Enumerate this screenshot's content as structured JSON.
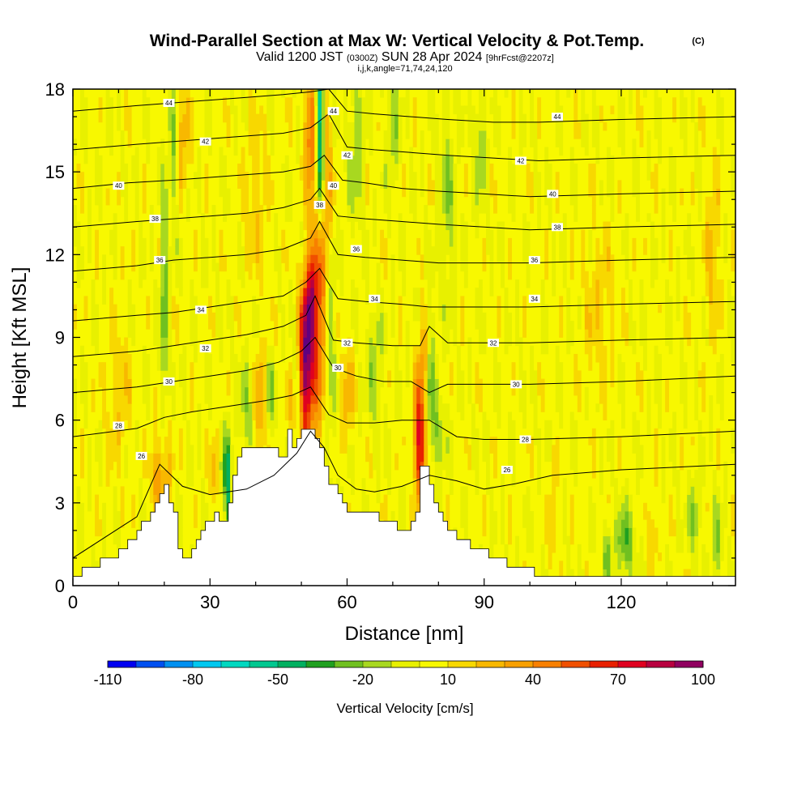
{
  "title": {
    "main": "Wind-Parallel Section at Max W: Vertical Velocity & Pot.Temp.",
    "main_mark": "(C)",
    "valid_prefix": "Valid 1200 JST",
    "valid_utc": "(0300Z)",
    "valid_date": "SUN 28 Apr 2024",
    "valid_fcst": "[9hrFcst@2207z]",
    "params": "i,j,k,angle=71,74,24,120"
  },
  "chart_data": {
    "type": "heatmap",
    "xlabel": "Distance [nm]",
    "ylabel": "Height [Kft MSL]",
    "xlim": [
      0,
      145
    ],
    "ylim": [
      0,
      18
    ],
    "x_ticks": [
      0,
      30,
      60,
      90,
      120
    ],
    "y_ticks": [
      0,
      3,
      6,
      9,
      12,
      15,
      18
    ],
    "colorbar": {
      "label": "Vertical Velocity [cm/s]",
      "tick_labels": [
        "-110",
        "-80",
        "-50",
        "-20",
        "10",
        "40",
        "70",
        "100"
      ],
      "tick_values": [
        -110,
        -80,
        -50,
        -20,
        10,
        40,
        70,
        100
      ],
      "bins": [
        -110,
        -100,
        -90,
        -80,
        -70,
        -60,
        -50,
        -40,
        -30,
        -20,
        -10,
        0,
        10,
        20,
        30,
        40,
        50,
        60,
        70,
        80,
        90,
        100
      ],
      "colors": [
        "#0000f0",
        "#0050f0",
        "#0090f0",
        "#00c8f0",
        "#00d8c0",
        "#00c890",
        "#00b060",
        "#20a020",
        "#70c020",
        "#a8d820",
        "#e8f000",
        "#f8f800",
        "#f8d800",
        "#f8b800",
        "#f8a000",
        "#f88000",
        "#f05000",
        "#e82000",
        "#e00020",
        "#b80040",
        "#900060",
        "#600080"
      ]
    },
    "terrain_profile": {
      "distance_nm": [
        0,
        3,
        8,
        12,
        15,
        18,
        20,
        22,
        23,
        25,
        27,
        29,
        31,
        33,
        35,
        36,
        38,
        40,
        42,
        44,
        45,
        46,
        47,
        48,
        50,
        52,
        54,
        56,
        58,
        60,
        62,
        64,
        66,
        68,
        70,
        72,
        74,
        75,
        76,
        77,
        78,
        79,
        80,
        82,
        84,
        86,
        88,
        90,
        92,
        95,
        98,
        105,
        115,
        125,
        135,
        145
      ],
      "height_kft": [
        0.3,
        0.6,
        1.0,
        1.6,
        2.2,
        3.0,
        3.8,
        2.5,
        1.2,
        1.0,
        1.6,
        2.3,
        2.5,
        2.2,
        4.0,
        4.8,
        5.0,
        5.0,
        5.0,
        5.0,
        4.5,
        4.8,
        5.5,
        5.0,
        5.8,
        5.8,
        5.0,
        3.8,
        3.2,
        2.8,
        2.6,
        2.6,
        2.5,
        2.4,
        2.2,
        1.9,
        2.2,
        2.8,
        4.2,
        4.3,
        3.8,
        3.0,
        2.5,
        2.0,
        1.7,
        1.5,
        1.3,
        1.2,
        1.1,
        0.8,
        0.6,
        0.3,
        0.3,
        0.3,
        0.3,
        0.3
      ]
    },
    "vertical_velocity_features": [
      {
        "x": 51,
        "y": 8.0,
        "sx": 1.2,
        "sy": 1.9,
        "value": 100
      },
      {
        "x": 52,
        "y": 10.5,
        "sx": 1.0,
        "sy": 1.2,
        "value": 45
      },
      {
        "x": 54,
        "y": 11.5,
        "sx": 1.2,
        "sy": 3.8,
        "value": 65
      },
      {
        "x": 56,
        "y": 14.5,
        "sx": 0.8,
        "sy": 2.0,
        "value": 30
      },
      {
        "x": 52,
        "y": 16.5,
        "sx": 1.0,
        "sy": 1.5,
        "value": 45
      },
      {
        "x": 54,
        "y": 16.0,
        "sx": 0.7,
        "sy": 2.8,
        "value": -90
      },
      {
        "x": 56,
        "y": 10.0,
        "sx": 1.0,
        "sy": 4.0,
        "value": -25
      },
      {
        "x": 49,
        "y": 7.0,
        "sx": 0.9,
        "sy": 1.5,
        "value": -30
      },
      {
        "x": 48,
        "y": 6.5,
        "sx": 1.2,
        "sy": 0.8,
        "value": 25
      },
      {
        "x": 76,
        "y": 5.3,
        "sx": 1.0,
        "sy": 1.6,
        "value": 75
      },
      {
        "x": 77,
        "y": 8.5,
        "sx": 0.9,
        "sy": 1.2,
        "value": 30
      },
      {
        "x": 78,
        "y": 7.5,
        "sx": 0.8,
        "sy": 2.0,
        "value": -35
      },
      {
        "x": 80,
        "y": 5.5,
        "sx": 1.2,
        "sy": 1.0,
        "value": -20
      },
      {
        "x": 20,
        "y": 10.0,
        "sx": 0.6,
        "sy": 3.5,
        "value": -30
      },
      {
        "x": 20,
        "y": 4.0,
        "sx": 1.0,
        "sy": 1.5,
        "value": 30
      },
      {
        "x": 18,
        "y": 3.8,
        "sx": 0.8,
        "sy": 1.0,
        "value": 25
      },
      {
        "x": 24,
        "y": 16.5,
        "sx": 1.2,
        "sy": 1.4,
        "value": 25
      },
      {
        "x": 22,
        "y": 16.0,
        "sx": 0.6,
        "sy": 2.0,
        "value": -25
      },
      {
        "x": 33,
        "y": 4.0,
        "sx": 0.8,
        "sy": 1.0,
        "value": -20
      },
      {
        "x": 34,
        "y": 3.5,
        "sx": 0.5,
        "sy": 1.5,
        "value": -40
      },
      {
        "x": 31,
        "y": 4.0,
        "sx": 0.6,
        "sy": 1.0,
        "value": 25
      },
      {
        "x": 41,
        "y": 6.5,
        "sx": 1.0,
        "sy": 1.4,
        "value": 30
      },
      {
        "x": 43,
        "y": 6.8,
        "sx": 0.8,
        "sy": 1.0,
        "value": -25
      },
      {
        "x": 38,
        "y": 6.5,
        "sx": 1.2,
        "sy": 1.2,
        "value": -20
      },
      {
        "x": 62,
        "y": 16.0,
        "sx": 1.2,
        "sy": 2.0,
        "value": -20
      },
      {
        "x": 66,
        "y": 8.0,
        "sx": 1.2,
        "sy": 1.5,
        "value": -20
      },
      {
        "x": 60,
        "y": 7.0,
        "sx": 1.0,
        "sy": 1.2,
        "value": 25
      },
      {
        "x": 70,
        "y": 16.5,
        "sx": 1.0,
        "sy": 1.6,
        "value": -20
      },
      {
        "x": 82,
        "y": 14.0,
        "sx": 1.2,
        "sy": 2.5,
        "value": -20
      },
      {
        "x": 89,
        "y": 16.0,
        "sx": 1.0,
        "sy": 1.6,
        "value": -20
      },
      {
        "x": 121,
        "y": 1.5,
        "sx": 1.5,
        "sy": 1.0,
        "value": -30
      },
      {
        "x": 117,
        "y": 1.2,
        "sx": 0.6,
        "sy": 0.8,
        "value": -30
      },
      {
        "x": 136,
        "y": 2.5,
        "sx": 0.9,
        "sy": 1.0,
        "value": -25
      },
      {
        "x": 141,
        "y": 1.5,
        "sx": 0.8,
        "sy": 1.2,
        "value": -20
      },
      {
        "x": 127,
        "y": 2.0,
        "sx": 0.8,
        "sy": 1.0,
        "value": 20
      },
      {
        "x": 105,
        "y": 2.5,
        "sx": 0.6,
        "sy": 1.2,
        "value": 20
      },
      {
        "x": 140,
        "y": 12.0,
        "sx": 1.2,
        "sy": 2.0,
        "value": 20
      },
      {
        "x": 40,
        "y": 14.0,
        "sx": 2.0,
        "sy": 2.0,
        "value": 15
      },
      {
        "x": 115,
        "y": 10.0,
        "sx": 2.5,
        "sy": 2.0,
        "value": 15
      },
      {
        "x": 10,
        "y": 7.0,
        "sx": 2.0,
        "sy": 2.0,
        "value": 15
      }
    ],
    "potential_temperature_contours": {
      "units": "C",
      "levels": [
        {
          "value": 26,
          "x": [
            0,
            14,
            19,
            24,
            30,
            38,
            44,
            49,
            52,
            55,
            58,
            62,
            66,
            72,
            78,
            84,
            90,
            97,
            105,
            120,
            145
          ],
          "y": [
            1.0,
            2.5,
            4.4,
            3.6,
            3.3,
            3.5,
            4.0,
            4.8,
            5.6,
            5.0,
            4.0,
            3.5,
            3.4,
            3.6,
            4.0,
            3.8,
            3.5,
            3.7,
            4.0,
            4.2,
            4.4
          ],
          "labels": [
            [
              15,
              4.7
            ],
            [
              95,
              4.2
            ]
          ]
        },
        {
          "value": 28,
          "x": [
            0,
            14,
            20,
            26,
            34,
            42,
            48,
            52,
            56,
            60,
            66,
            72,
            78,
            84,
            90,
            100,
            120,
            145
          ],
          "y": [
            5.4,
            5.7,
            6.1,
            6.3,
            6.5,
            6.7,
            6.9,
            7.2,
            6.2,
            5.9,
            5.9,
            6.0,
            6.0,
            5.4,
            5.3,
            5.3,
            5.4,
            5.6
          ],
          "labels": [
            [
              10,
              5.8
            ],
            [
              99,
              5.3
            ]
          ]
        },
        {
          "value": 30,
          "x": [
            0,
            14,
            22,
            30,
            38,
            45,
            50,
            53,
            57,
            62,
            68,
            74,
            78,
            82,
            90,
            100,
            120,
            145
          ],
          "y": [
            7.0,
            7.2,
            7.4,
            7.6,
            7.8,
            8.1,
            8.5,
            9.0,
            7.9,
            7.6,
            7.4,
            7.4,
            7.0,
            7.3,
            7.3,
            7.3,
            7.4,
            7.6
          ],
          "labels": [
            [
              21,
              7.4
            ],
            [
              58,
              7.9
            ],
            [
              97,
              7.3
            ]
          ]
        },
        {
          "value": 32,
          "x": [
            0,
            14,
            22,
            30,
            38,
            46,
            51,
            53,
            57,
            62,
            70,
            76,
            78,
            82,
            90,
            100,
            120,
            145
          ],
          "y": [
            8.3,
            8.5,
            8.7,
            8.9,
            9.1,
            9.4,
            9.8,
            10.5,
            8.9,
            8.8,
            8.7,
            8.7,
            9.4,
            8.8,
            8.8,
            8.8,
            8.9,
            9.0
          ],
          "labels": [
            [
              29,
              8.6
            ],
            [
              60,
              8.8
            ],
            [
              92,
              8.8
            ]
          ]
        },
        {
          "value": 34,
          "x": [
            0,
            14,
            22,
            30,
            38,
            46,
            51,
            54,
            58,
            64,
            72,
            78,
            84,
            92,
            100,
            120,
            145
          ],
          "y": [
            9.6,
            9.8,
            9.9,
            10.1,
            10.3,
            10.5,
            11.0,
            11.5,
            10.4,
            10.3,
            10.2,
            10.1,
            10.1,
            10.1,
            10.1,
            10.2,
            10.3
          ],
          "labels": [
            [
              28,
              10.0
            ],
            [
              66,
              10.4
            ],
            [
              101,
              10.4
            ]
          ]
        },
        {
          "value": 36,
          "x": [
            0,
            14,
            22,
            30,
            38,
            46,
            52,
            54,
            58,
            64,
            72,
            80,
            90,
            100,
            120,
            145
          ],
          "y": [
            11.4,
            11.6,
            11.8,
            11.9,
            12.0,
            12.2,
            12.6,
            13.2,
            12.0,
            11.9,
            11.8,
            11.7,
            11.7,
            11.7,
            11.8,
            11.9
          ],
          "labels": [
            [
              19,
              11.8
            ],
            [
              62,
              12.2
            ],
            [
              101,
              11.8
            ]
          ]
        },
        {
          "value": 38,
          "x": [
            0,
            14,
            22,
            30,
            38,
            46,
            52,
            54,
            58,
            64,
            72,
            80,
            90,
            100,
            120,
            145
          ],
          "y": [
            13.0,
            13.2,
            13.3,
            13.4,
            13.5,
            13.7,
            14.0,
            14.4,
            13.4,
            13.3,
            13.2,
            13.1,
            13.0,
            12.9,
            13.0,
            13.1
          ],
          "labels": [
            [
              18,
              13.3
            ],
            [
              54,
              13.8
            ],
            [
              106,
              13.0
            ]
          ]
        },
        {
          "value": 40,
          "x": [
            0,
            12,
            22,
            30,
            38,
            46,
            52,
            55,
            59,
            64,
            72,
            80,
            90,
            100,
            120,
            145
          ],
          "y": [
            14.4,
            14.6,
            14.7,
            14.8,
            14.9,
            15.0,
            15.2,
            15.6,
            14.7,
            14.6,
            14.4,
            14.3,
            14.2,
            14.1,
            14.2,
            14.3
          ],
          "labels": [
            [
              10,
              14.5
            ],
            [
              57,
              14.5
            ],
            [
              105,
              14.2
            ]
          ]
        },
        {
          "value": 42,
          "x": [
            0,
            14,
            22,
            30,
            38,
            46,
            52,
            56,
            60,
            66,
            74,
            82,
            92,
            102,
            120,
            145
          ],
          "y": [
            15.8,
            16.0,
            16.1,
            16.2,
            16.3,
            16.4,
            16.6,
            17.1,
            15.9,
            15.8,
            15.7,
            15.6,
            15.5,
            15.4,
            15.5,
            15.6
          ],
          "labels": [
            [
              29,
              16.1
            ],
            [
              60,
              15.6
            ],
            [
              98,
              15.4
            ]
          ]
        },
        {
          "value": 44,
          "x": [
            0,
            14,
            22,
            30,
            38,
            46,
            52,
            56,
            60,
            66,
            74,
            82,
            92,
            102,
            120,
            145
          ],
          "y": [
            17.2,
            17.4,
            17.5,
            17.6,
            17.7,
            17.8,
            17.9,
            18.0,
            17.2,
            17.1,
            17.0,
            16.9,
            16.8,
            16.8,
            16.9,
            17.0
          ],
          "labels": [
            [
              21,
              17.5
            ],
            [
              57,
              17.2
            ],
            [
              106,
              17.0
            ]
          ]
        }
      ]
    }
  }
}
